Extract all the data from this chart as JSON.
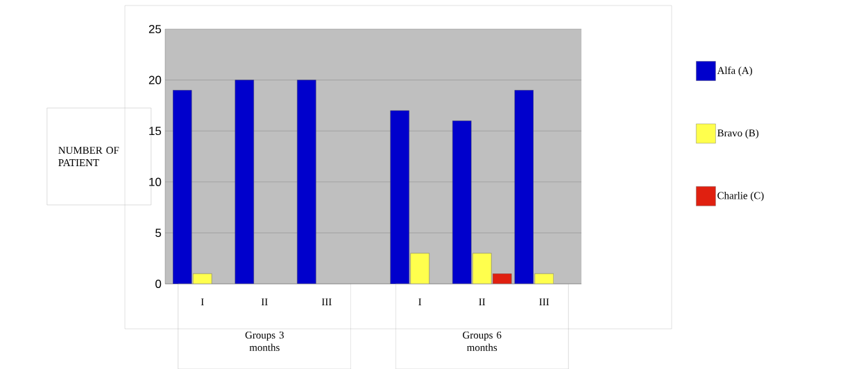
{
  "chart_data": {
    "type": "bar",
    "ylabel": "NUMBER OF PATIENT",
    "categories": [
      "I",
      "II",
      "III",
      "I",
      "II",
      "III"
    ],
    "series": [
      {
        "name": "Alfa (A)",
        "color": "#0000cc",
        "values": [
          19,
          20,
          20,
          17,
          16,
          19
        ]
      },
      {
        "name": "Bravo (B)",
        "color": "#ffff4d",
        "values": [
          1,
          null,
          null,
          3,
          3,
          1
        ]
      },
      {
        "name": "Charlie (C)",
        "color": "#e02010",
        "values": [
          null,
          null,
          null,
          null,
          1,
          null
        ]
      }
    ],
    "ylim": [
      0,
      25
    ],
    "yticks": [
      0,
      5,
      10,
      15,
      20,
      25
    ],
    "grid": "y",
    "legend": "right",
    "annotations": [
      "Groups 3 months",
      "Groups 6 months"
    ]
  }
}
